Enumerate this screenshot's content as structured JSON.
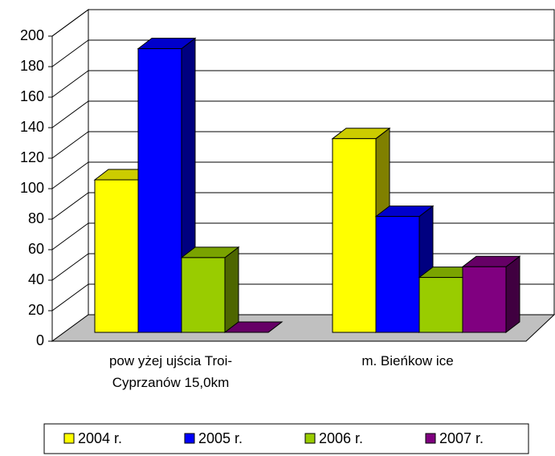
{
  "chart_data": {
    "type": "bar3d",
    "categories": [
      "pow yżej ujścia Troi-Cyprzanów 15,0km",
      "m. Bieńkow ice"
    ],
    "series": [
      {
        "name": "2004 r.",
        "color": "#ffff00",
        "values": [
          100,
          127
        ]
      },
      {
        "name": "2005 r.",
        "color": "#0000ff",
        "values": [
          186,
          76
        ]
      },
      {
        "name": "2006 r.",
        "color": "#99cc00",
        "values": [
          49,
          36
        ]
      },
      {
        "name": "2007 r.",
        "color": "#800080",
        "values": [
          0,
          43
        ]
      }
    ],
    "ylim": [
      0,
      200
    ],
    "yticks": [
      0,
      20,
      40,
      60,
      80,
      100,
      120,
      140,
      160,
      180,
      200
    ],
    "grid": true,
    "legend": "bottom"
  }
}
